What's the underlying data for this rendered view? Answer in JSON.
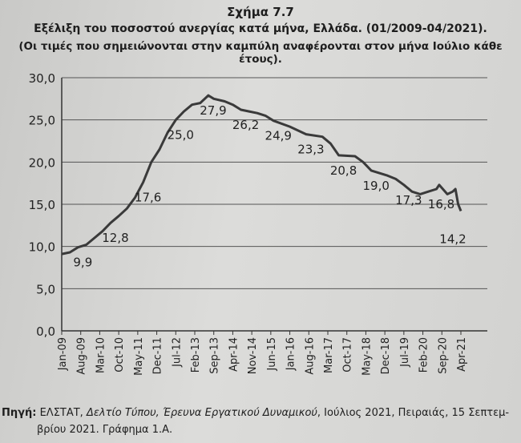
{
  "chart_data": {
    "type": "line",
    "title": "Σχήμα 7.7",
    "subtitle": "Εξέλιξη του ποσοστού ανεργίας κατά μήνα, Ελλάδα. (01/2009-04/2021).",
    "note": "(Οι τιμές που σημειώνονται στην καμπύλη αναφέρονται στον μήνα Ιούλιο κάθε έτους).",
    "xlabel": "",
    "ylabel": "",
    "ylim": [
      0,
      30
    ],
    "yticks": [
      "0,0",
      "5,0",
      "10,0",
      "15,0",
      "20,0",
      "25,0",
      "30,0"
    ],
    "xticks": [
      "Jan-09",
      "Aug-09",
      "Mar-10",
      "Oct-10",
      "May-11",
      "Dec-11",
      "Jul-12",
      "Feb-13",
      "Sep-13",
      "Apr-14",
      "Nov-14",
      "Jun-15",
      "Jan-16",
      "Aug-16",
      "Mar-17",
      "Oct-17",
      "May-18",
      "Dec-18",
      "Jul-19",
      "Feb-20",
      "Sep-20",
      "Apr-21"
    ],
    "grid": "horizontal",
    "line_color": "#3a3a3a",
    "points": [
      [
        "2009-01",
        9.1
      ],
      [
        "2009-04",
        9.3
      ],
      [
        "2009-07",
        9.9
      ],
      [
        "2009-10",
        10.2
      ],
      [
        "2010-01",
        11.0
      ],
      [
        "2010-04",
        11.8
      ],
      [
        "2010-07",
        12.8
      ],
      [
        "2010-10",
        13.6
      ],
      [
        "2011-01",
        14.5
      ],
      [
        "2011-04",
        15.8
      ],
      [
        "2011-07",
        17.6
      ],
      [
        "2011-10",
        20.0
      ],
      [
        "2012-01",
        21.5
      ],
      [
        "2012-04",
        23.5
      ],
      [
        "2012-07",
        25.0
      ],
      [
        "2012-10",
        26.0
      ],
      [
        "2013-01",
        26.8
      ],
      [
        "2013-04",
        27.0
      ],
      [
        "2013-07",
        27.9
      ],
      [
        "2013-09",
        27.5
      ],
      [
        "2014-01",
        27.2
      ],
      [
        "2014-04",
        26.8
      ],
      [
        "2014-07",
        26.2
      ],
      [
        "2014-10",
        26.0
      ],
      [
        "2015-01",
        25.8
      ],
      [
        "2015-04",
        25.5
      ],
      [
        "2015-07",
        24.9
      ],
      [
        "2016-01",
        24.2
      ],
      [
        "2016-07",
        23.3
      ],
      [
        "2017-01",
        23.0
      ],
      [
        "2017-04",
        22.2
      ],
      [
        "2017-07",
        20.8
      ],
      [
        "2018-01",
        20.7
      ],
      [
        "2018-04",
        20.0
      ],
      [
        "2018-07",
        19.0
      ],
      [
        "2019-01",
        18.4
      ],
      [
        "2019-04",
        18.0
      ],
      [
        "2019-07",
        17.3
      ],
      [
        "2019-10",
        16.5
      ],
      [
        "2020-01",
        16.2
      ],
      [
        "2020-04",
        16.5
      ],
      [
        "2020-07",
        16.8
      ],
      [
        "2020-08",
        17.3
      ],
      [
        "2020-11",
        16.2
      ],
      [
        "2021-01",
        16.5
      ],
      [
        "2021-02",
        16.8
      ],
      [
        "2021-03",
        15.0
      ],
      [
        "2021-04",
        14.2
      ]
    ],
    "annotations": [
      {
        "date": "2009-07",
        "label": "9,9"
      },
      {
        "date": "2010-07",
        "label": "12,8"
      },
      {
        "date": "2011-07",
        "label": "17,6"
      },
      {
        "date": "2012-07",
        "label": "25,0"
      },
      {
        "date": "2013-07",
        "label": "27,9"
      },
      {
        "date": "2014-07",
        "label": "26,2"
      },
      {
        "date": "2015-07",
        "label": "24,9"
      },
      {
        "date": "2016-07",
        "label": "23,3"
      },
      {
        "date": "2017-07",
        "label": "20,8"
      },
      {
        "date": "2018-07",
        "label": "19,0"
      },
      {
        "date": "2019-07",
        "label": "17,3"
      },
      {
        "date": "2020-07",
        "label": "16,8"
      },
      {
        "date": "2021-04",
        "label": "14,2"
      }
    ]
  },
  "source": {
    "label": "Πηγή:",
    "org": " ΕΛΣΤΑΤ, ",
    "doc": "Δελτίο Τύπου, Έρευνα Εργατικού Δυναμικού",
    "rest": ", Ιούλιος 2021, Πειραιάς, 15 Σεπτεμ-",
    "line2": "βρίου 2021. Γράφημα 1.Α."
  }
}
